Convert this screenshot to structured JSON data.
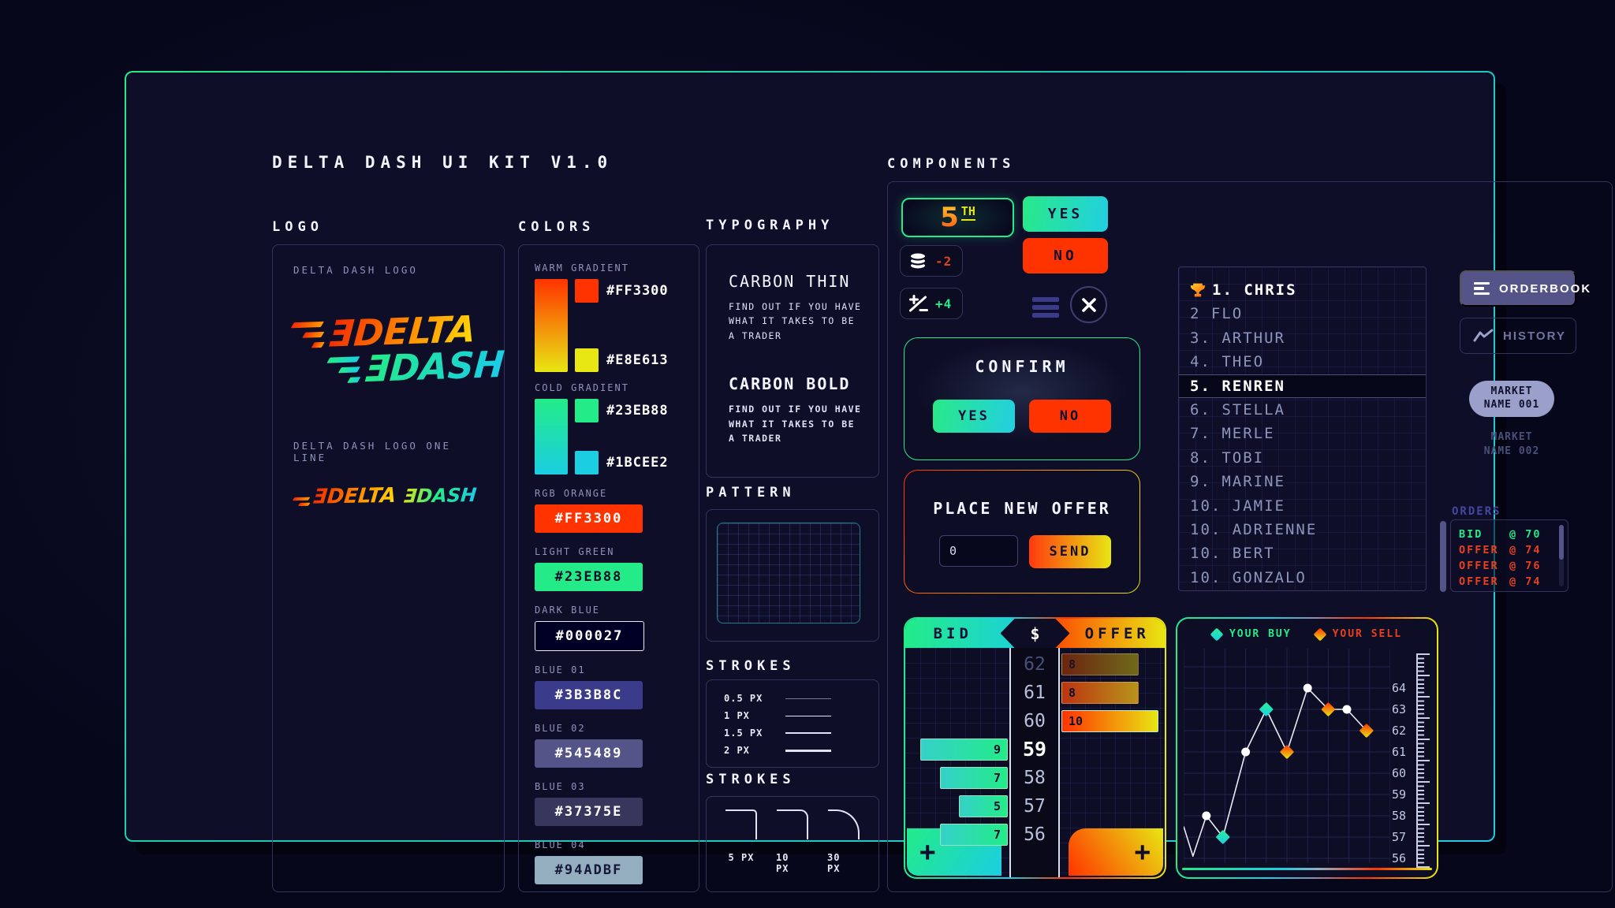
{
  "title": "DELTA DASH UI KIT V1.0",
  "section_labels": {
    "logo": "LOGO",
    "colors": "COLORS",
    "typography": "TYPOGRAPHY",
    "pattern": "PATTERN",
    "strokes": "STROKES",
    "strokes_corners": "STROKES",
    "components": "COMPONENTS"
  },
  "logo": {
    "label": "DELTA DASH LOGO",
    "one_line_label": "DELTA DASH LOGO ONE LINE",
    "word1": "ƎDELTA",
    "word2": "ƎDASH"
  },
  "colors": {
    "gradients": [
      {
        "label": "WARM GRADIENT",
        "stops": [
          "#FF3300",
          "#E8E613"
        ]
      },
      {
        "label": "COLD GRADIENT",
        "stops": [
          "#23EB88",
          "#1BCEE2"
        ]
      }
    ],
    "swatches": [
      {
        "label": "RGB ORANGE",
        "hex": "#FF3300",
        "fg": "#FFFFFF",
        "outlined": false
      },
      {
        "label": "LIGHT GREEN",
        "hex": "#23EB88",
        "fg": "#0D0D26",
        "outlined": false
      },
      {
        "label": "DARK BLUE",
        "hex": "#000027",
        "fg": "#FFFFFF",
        "outlined": true
      },
      {
        "label": "BLUE 01",
        "hex": "#3B3B8C",
        "fg": "#FFFFFF",
        "outlined": false
      },
      {
        "label": "BLUE 02",
        "hex": "#545489",
        "fg": "#FFFFFF",
        "outlined": false
      },
      {
        "label": "BLUE 03",
        "hex": "#37375E",
        "fg": "#FFFFFF",
        "outlined": false
      },
      {
        "label": "BLUE 04",
        "hex": "#94ADBF",
        "fg": "#16163A",
        "outlined": false
      }
    ]
  },
  "typography": {
    "thin_name": "CARBON THIN",
    "thin_sample": "FIND OUT IF YOU HAVE WHAT IT TAKES TO BE A TRADER",
    "bold_name": "CARBON BOLD",
    "bold_sample": "FIND OUT IF YOU HAVE WHAT IT TAKES TO BE A TRADER"
  },
  "strokes": {
    "rows": [
      {
        "label": "0.5 PX",
        "px": 0.5
      },
      {
        "label": "1 PX",
        "px": 1
      },
      {
        "label": "1.5 PX",
        "px": 1.5
      },
      {
        "label": "2 PX",
        "px": 2
      }
    ]
  },
  "corner_strokes": {
    "items": [
      {
        "label": "5 PX",
        "radius": 5
      },
      {
        "label": "10 PX",
        "radius": 10
      },
      {
        "label": "30 PX",
        "radius": 30
      }
    ]
  },
  "components": {
    "rank_badge": {
      "value": "5",
      "suffix": "TH"
    },
    "coin_badge": {
      "value": "-2"
    },
    "delta_badge": {
      "value": "+4"
    },
    "yes_button": "YES",
    "no_button": "NO",
    "confirm": {
      "title": "CONFIRM",
      "yes": "YES",
      "no": "NO"
    },
    "place_offer": {
      "title": "PLACE NEW OFFER",
      "input_value": "0",
      "send": "SEND"
    },
    "ladder": {
      "bid_label": "BID",
      "offer_label": "OFFER",
      "currency": "$"
    },
    "history_chart": {
      "legend_buy": "YOUR BUY",
      "legend_sell": "YOUR SELL"
    },
    "leaderboard": [
      {
        "rank": "1.",
        "name": "CHRIS",
        "style": "leader",
        "trophy": true
      },
      {
        "rank": "2",
        "name": "FLO",
        "style": "dim",
        "trophy": false
      },
      {
        "rank": "3.",
        "name": "ARTHUR",
        "style": "dim",
        "trophy": false
      },
      {
        "rank": "4.",
        "name": "THEO",
        "style": "dim",
        "trophy": false
      },
      {
        "rank": "5.",
        "name": "RENREN",
        "style": "active",
        "trophy": false
      },
      {
        "rank": "6.",
        "name": "STELLA",
        "style": "dim",
        "trophy": false
      },
      {
        "rank": "7.",
        "name": "MERLE",
        "style": "dim",
        "trophy": false
      },
      {
        "rank": "8.",
        "name": "TOBI",
        "style": "dim",
        "trophy": false
      },
      {
        "rank": "9.",
        "name": "MARINE",
        "style": "dim",
        "trophy": false
      },
      {
        "rank": "10.",
        "name": "JAMIE",
        "style": "dim",
        "trophy": false
      },
      {
        "rank": "10.",
        "name": "ADRIENNE",
        "style": "dim",
        "trophy": false
      },
      {
        "rank": "10.",
        "name": "BERT",
        "style": "dim",
        "trophy": false
      },
      {
        "rank": "10.",
        "name": "GONZALO",
        "style": "dim",
        "trophy": false
      }
    ],
    "orderbook_button": "ORDERBOOK",
    "history_button": "HISTORY",
    "market_badge": {
      "line1": "MARKET",
      "line2": "NAME 001"
    },
    "market_label": {
      "line1": "MARKET",
      "line2": "NAME 002"
    },
    "orders": {
      "label": "ORDERS",
      "rows": [
        {
          "side": "BID",
          "at": "@ 70",
          "kind": "bid"
        },
        {
          "side": "OFFER",
          "at": "@ 74",
          "kind": "offer"
        },
        {
          "side": "OFFER",
          "at": "@ 76",
          "kind": "offer"
        },
        {
          "side": "OFFER",
          "at": "@ 74",
          "kind": "offer"
        }
      ]
    }
  },
  "chart_data": [
    {
      "type": "bar",
      "title": "BID / OFFER depth ladder",
      "orientation": "horizontal",
      "categories": [
        62,
        61,
        60,
        59,
        58,
        57,
        56
      ],
      "series": [
        {
          "name": "OFFER",
          "values": [
            8,
            8,
            10,
            null,
            null,
            null,
            null
          ]
        },
        {
          "name": "BID",
          "values": [
            null,
            null,
            null,
            9,
            7,
            5,
            7
          ]
        }
      ],
      "highlight_price": 59,
      "legend_position": "header"
    },
    {
      "type": "line",
      "title": "Trade history with buy/sell markers",
      "ylabels": [
        64,
        63,
        62,
        61,
        60,
        59,
        58,
        57,
        56
      ],
      "ylim": [
        56,
        66
      ],
      "xlim": [
        0,
        10
      ],
      "grid": true,
      "legend": [
        "YOUR BUY",
        "YOUR SELL"
      ],
      "legend_position": "top",
      "points": [
        {
          "x": 0.0,
          "y": 57.5,
          "marker": "none"
        },
        {
          "x": 0.45,
          "y": 56.1,
          "marker": "none"
        },
        {
          "x": 1.1,
          "y": 58,
          "marker": "dot"
        },
        {
          "x": 1.9,
          "y": 57,
          "marker": "buy"
        },
        {
          "x": 3.0,
          "y": 61,
          "marker": "dot"
        },
        {
          "x": 4.0,
          "y": 63,
          "marker": "buy"
        },
        {
          "x": 5.0,
          "y": 61,
          "marker": "sell"
        },
        {
          "x": 6.0,
          "y": 64,
          "marker": "dot"
        },
        {
          "x": 7.0,
          "y": 63,
          "marker": "sell"
        },
        {
          "x": 7.9,
          "y": 63,
          "marker": "dot"
        },
        {
          "x": 8.85,
          "y": 62,
          "marker": "sell"
        }
      ]
    }
  ],
  "palette": {
    "orange": "#FF3300",
    "yellow": "#E8E613",
    "green": "#23EB88",
    "cyan": "#1BCEE2",
    "dark_blue": "#000027",
    "blue01": "#3B3B8C",
    "blue02": "#545489",
    "blue03": "#37375E",
    "blue04": "#94ADBF"
  }
}
